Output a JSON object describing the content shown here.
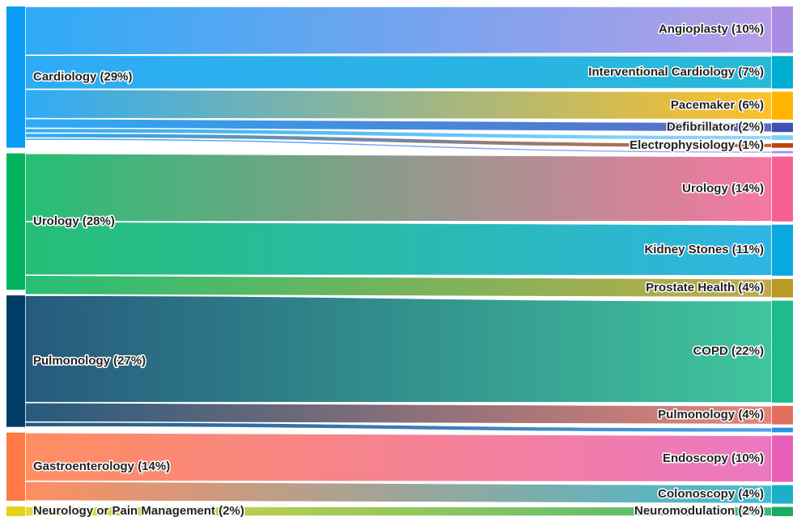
{
  "chart_data": {
    "type": "sankey",
    "sources": [
      {
        "id": "cardiology",
        "label": "Cardiology (29%)",
        "value": 29,
        "color": "#0a9cf5"
      },
      {
        "id": "urology",
        "label": "Urology (28%)",
        "value": 28,
        "color": "#00b35c"
      },
      {
        "id": "pulmonology",
        "label": "Pulmonology (27%)",
        "value": 27,
        "color": "#003d66"
      },
      {
        "id": "gastro",
        "label": "Gastroenterology (14%)",
        "value": 14,
        "color": "#ff7a45"
      },
      {
        "id": "neurology",
        "label": "Neurology or Pain Management (2%)",
        "value": 2,
        "color": "#e6d21a"
      }
    ],
    "targets": [
      {
        "id": "angioplasty",
        "label": "Angioplasty (10%)",
        "value": 10,
        "color": "#a98ce3"
      },
      {
        "id": "interventional",
        "label": "Interventional Cardiology (7%)",
        "value": 7,
        "color": "#00aed1"
      },
      {
        "id": "pacemaker",
        "label": "Pacemaker (6%)",
        "value": 6,
        "color": "#ffb500"
      },
      {
        "id": "defibrillator",
        "label": "Defibrillator (2%)",
        "value": 2,
        "color": "#3f51b5"
      },
      {
        "id": "cardio_other_a",
        "label": "",
        "value": 1,
        "color": "#7fd3f5"
      },
      {
        "id": "electrophysiology",
        "label": "Electrophysiology (1%)",
        "value": 1,
        "color": "#c0440e"
      },
      {
        "id": "cardio_other_b",
        "label": "",
        "value": 0.5,
        "color": "#b48ee8"
      },
      {
        "id": "urology_t",
        "label": "Urology (14%)",
        "value": 14,
        "color": "#f55f91"
      },
      {
        "id": "kidney",
        "label": "Kidney Stones (11%)",
        "value": 11,
        "color": "#0aa8e0"
      },
      {
        "id": "prostate",
        "label": "Prostate Health (4%)",
        "value": 4,
        "color": "#b89a25"
      },
      {
        "id": "copd",
        "label": "COPD (22%)",
        "value": 22,
        "color": "#1ebb8c"
      },
      {
        "id": "pulmonology_t",
        "label": "Pulmonology (4%)",
        "value": 4,
        "color": "#e36e5f"
      },
      {
        "id": "pulm_other",
        "label": "",
        "value": 1,
        "color": "#2b8fe8"
      },
      {
        "id": "endoscopy",
        "label": "Endoscopy (10%)",
        "value": 10,
        "color": "#e85fb8"
      },
      {
        "id": "colonoscopy",
        "label": "Colonoscopy (4%)",
        "value": 4,
        "color": "#1cb0c8"
      },
      {
        "id": "neuromodulation",
        "label": "Neuromodulation (2%)",
        "value": 2,
        "color": "#20aa60"
      }
    ],
    "links": [
      {
        "source": "cardiology",
        "target": "angioplasty",
        "value": 10
      },
      {
        "source": "cardiology",
        "target": "interventional",
        "value": 7
      },
      {
        "source": "cardiology",
        "target": "pacemaker",
        "value": 6
      },
      {
        "source": "cardiology",
        "target": "defibrillator",
        "value": 2
      },
      {
        "source": "cardiology",
        "target": "cardio_other_a",
        "value": 1
      },
      {
        "source": "cardiology",
        "target": "electrophysiology",
        "value": 1
      },
      {
        "source": "cardiology",
        "target": "cardio_other_b",
        "value": 0.5
      },
      {
        "source": "urology",
        "target": "urology_t",
        "value": 14
      },
      {
        "source": "urology",
        "target": "kidney",
        "value": 11
      },
      {
        "source": "urology",
        "target": "prostate",
        "value": 4
      },
      {
        "source": "pulmonology",
        "target": "copd",
        "value": 22
      },
      {
        "source": "pulmonology",
        "target": "pulmonology_t",
        "value": 4
      },
      {
        "source": "pulmonology",
        "target": "pulm_other",
        "value": 1
      },
      {
        "source": "gastro",
        "target": "endoscopy",
        "value": 10
      },
      {
        "source": "gastro",
        "target": "colonoscopy",
        "value": 4
      },
      {
        "source": "neurology",
        "target": "neuromodulation",
        "value": 2
      }
    ]
  }
}
